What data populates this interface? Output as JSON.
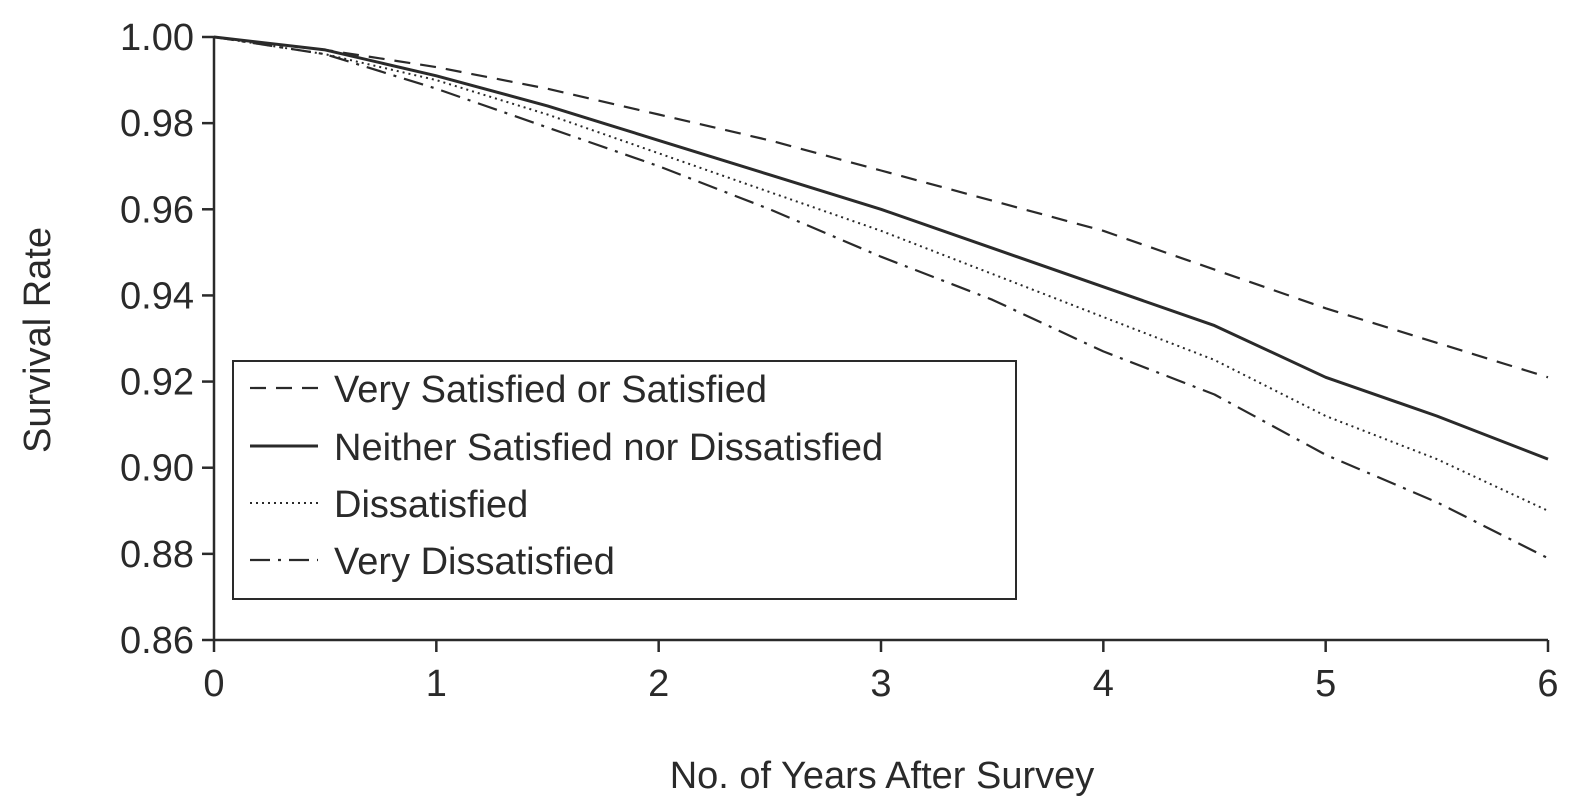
{
  "chart_data": {
    "type": "line",
    "title": "",
    "xlabel": "No. of Years After Survey",
    "ylabel": "Survival Rate",
    "xlim": [
      0,
      6
    ],
    "ylim": [
      0.86,
      1.0
    ],
    "x_ticks": [
      "0",
      "1",
      "2",
      "3",
      "4",
      "5",
      "6"
    ],
    "y_ticks": [
      "0.86",
      "0.88",
      "0.90",
      "0.92",
      "0.94",
      "0.96",
      "0.98",
      "1.00"
    ],
    "grid": false,
    "legend_position": "lower-left",
    "x": [
      0,
      0.5,
      1,
      1.5,
      2,
      2.5,
      3,
      3.5,
      4,
      4.5,
      5,
      5.5,
      6
    ],
    "series": [
      {
        "name": "Very Satisfied or Satisfied",
        "style": "dashed",
        "values": [
          1.0,
          0.997,
          0.993,
          0.988,
          0.982,
          0.976,
          0.969,
          0.962,
          0.955,
          0.946,
          0.937,
          0.929,
          0.921
        ]
      },
      {
        "name": "Neither Satisfied nor Dissatisfied",
        "style": "solid",
        "values": [
          1.0,
          0.997,
          0.991,
          0.984,
          0.976,
          0.968,
          0.96,
          0.951,
          0.942,
          0.933,
          0.921,
          0.912,
          0.902
        ]
      },
      {
        "name": "Dissatisfied",
        "style": "dotted",
        "values": [
          1.0,
          0.996,
          0.99,
          0.982,
          0.973,
          0.964,
          0.955,
          0.945,
          0.935,
          0.925,
          0.912,
          0.902,
          0.89
        ]
      },
      {
        "name": "Very Dissatisfied",
        "style": "dashdot",
        "values": [
          1.0,
          0.996,
          0.988,
          0.979,
          0.97,
          0.96,
          0.949,
          0.939,
          0.927,
          0.917,
          0.903,
          0.892,
          0.879
        ]
      }
    ],
    "colors": {
      "line": "#2a2a2a",
      "axis": "#2a2a2a",
      "background": "#ffffff"
    }
  }
}
